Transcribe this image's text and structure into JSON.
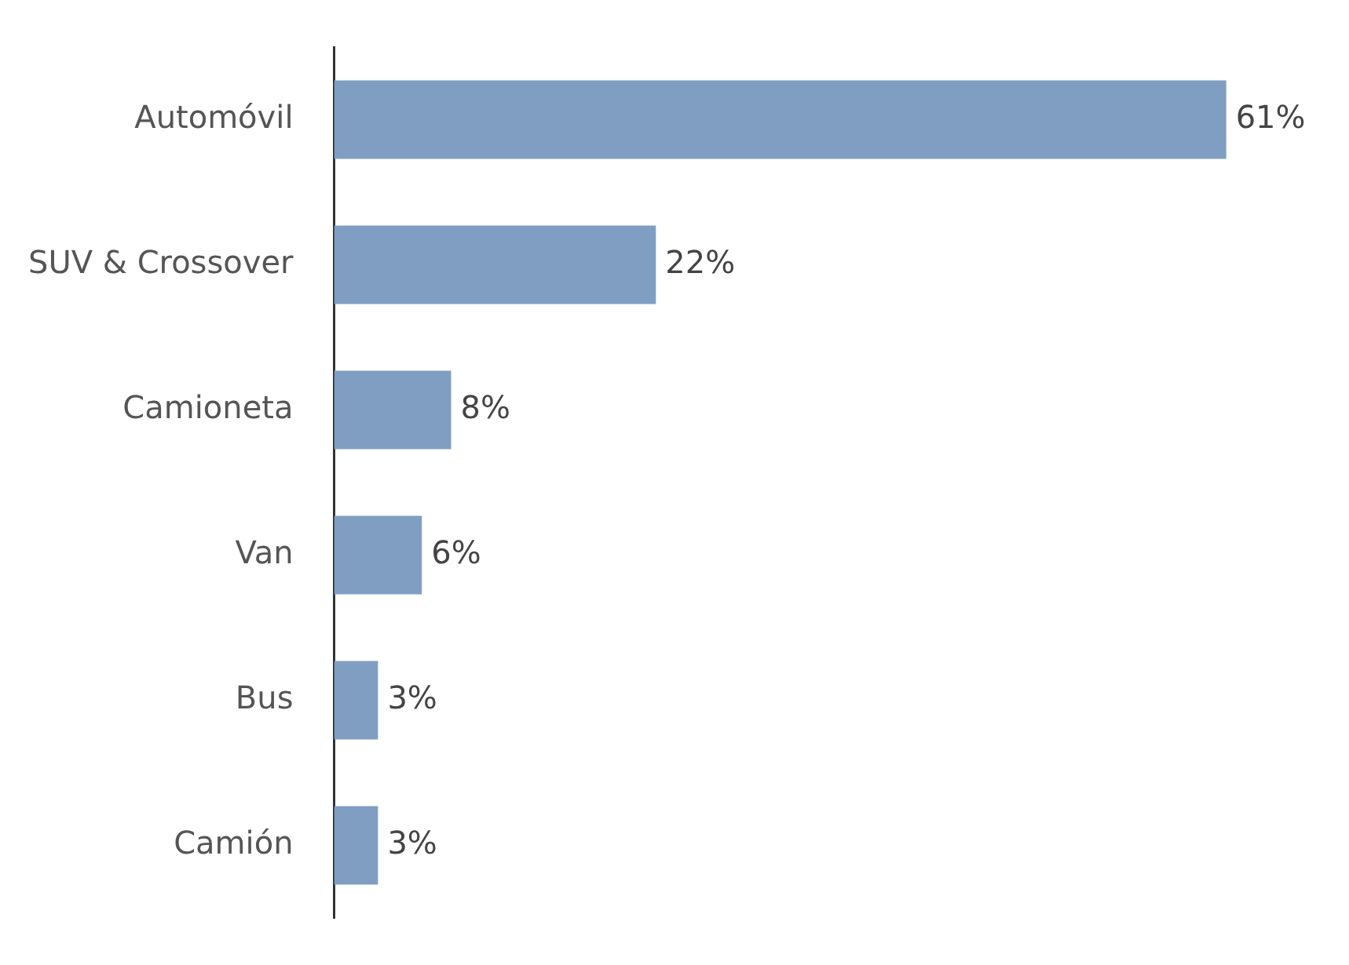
{
  "chart_data": {
    "type": "bar",
    "orientation": "horizontal",
    "categories": [
      "Automóvil",
      "SUV & Crossover",
      "Camioneta",
      "Van",
      "Bus",
      "Camión"
    ],
    "values": [
      61,
      22,
      8,
      6,
      3,
      3
    ],
    "color": "#7f9ec2",
    "value_labels": [
      "61%",
      "22%",
      "8%",
      "6%",
      "3%",
      "3%"
    ],
    "legend": false
  }
}
